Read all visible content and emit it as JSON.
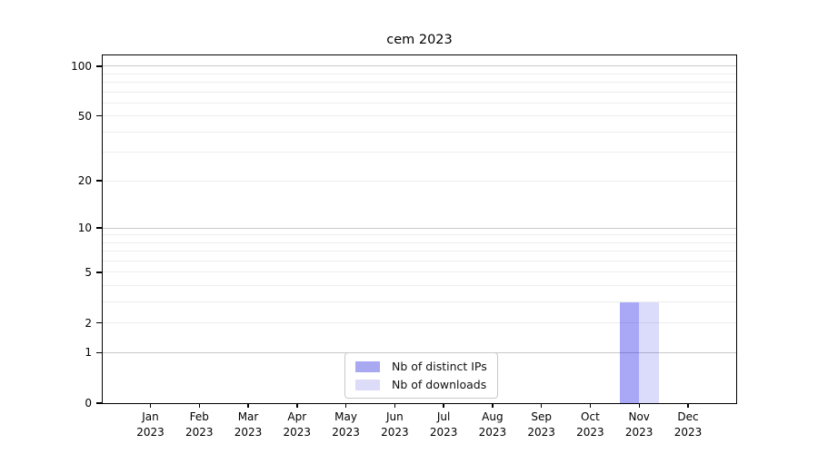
{
  "chart_data": {
    "type": "bar",
    "title": "cem 2023",
    "categories": [
      "Jan",
      "Feb",
      "Mar",
      "Apr",
      "May",
      "Jun",
      "Jul",
      "Aug",
      "Sep",
      "Oct",
      "Nov",
      "Dec"
    ],
    "x_year_label": "2023",
    "series": [
      {
        "name": "Nb of distinct IPs",
        "color": "rgba(0,0,230,0.34)",
        "legend_color": "#a9a9f2",
        "values": [
          0,
          0,
          0,
          0,
          0,
          0,
          0,
          0,
          0,
          0,
          3,
          0
        ]
      },
      {
        "name": "Nb of downloads",
        "color": "rgba(0,0,230,0.14)",
        "legend_color": "#dcdcf9",
        "values": [
          0,
          0,
          0,
          0,
          0,
          0,
          0,
          0,
          0,
          0,
          3,
          0
        ]
      }
    ],
    "xlabel": "",
    "ylabel": "",
    "y_scale": "log1p",
    "y_max": 116,
    "y_axis_ticks": [
      0,
      1,
      2,
      5,
      10,
      20,
      50,
      100
    ],
    "gridlines": {
      "major": [
        1,
        10,
        100
      ],
      "minor": [
        2,
        3,
        4,
        5,
        6,
        7,
        8,
        9,
        20,
        30,
        40,
        50,
        60,
        70,
        80,
        90
      ]
    },
    "legend": {
      "position": "inside-bottom-center",
      "entries": [
        "Nb of distinct IPs",
        "Nb of downloads"
      ]
    },
    "colors": {
      "spine": "#000000",
      "gridline_major": "#c9c9c9",
      "gridline_minor": "#ededed",
      "background": "#ffffff"
    }
  }
}
